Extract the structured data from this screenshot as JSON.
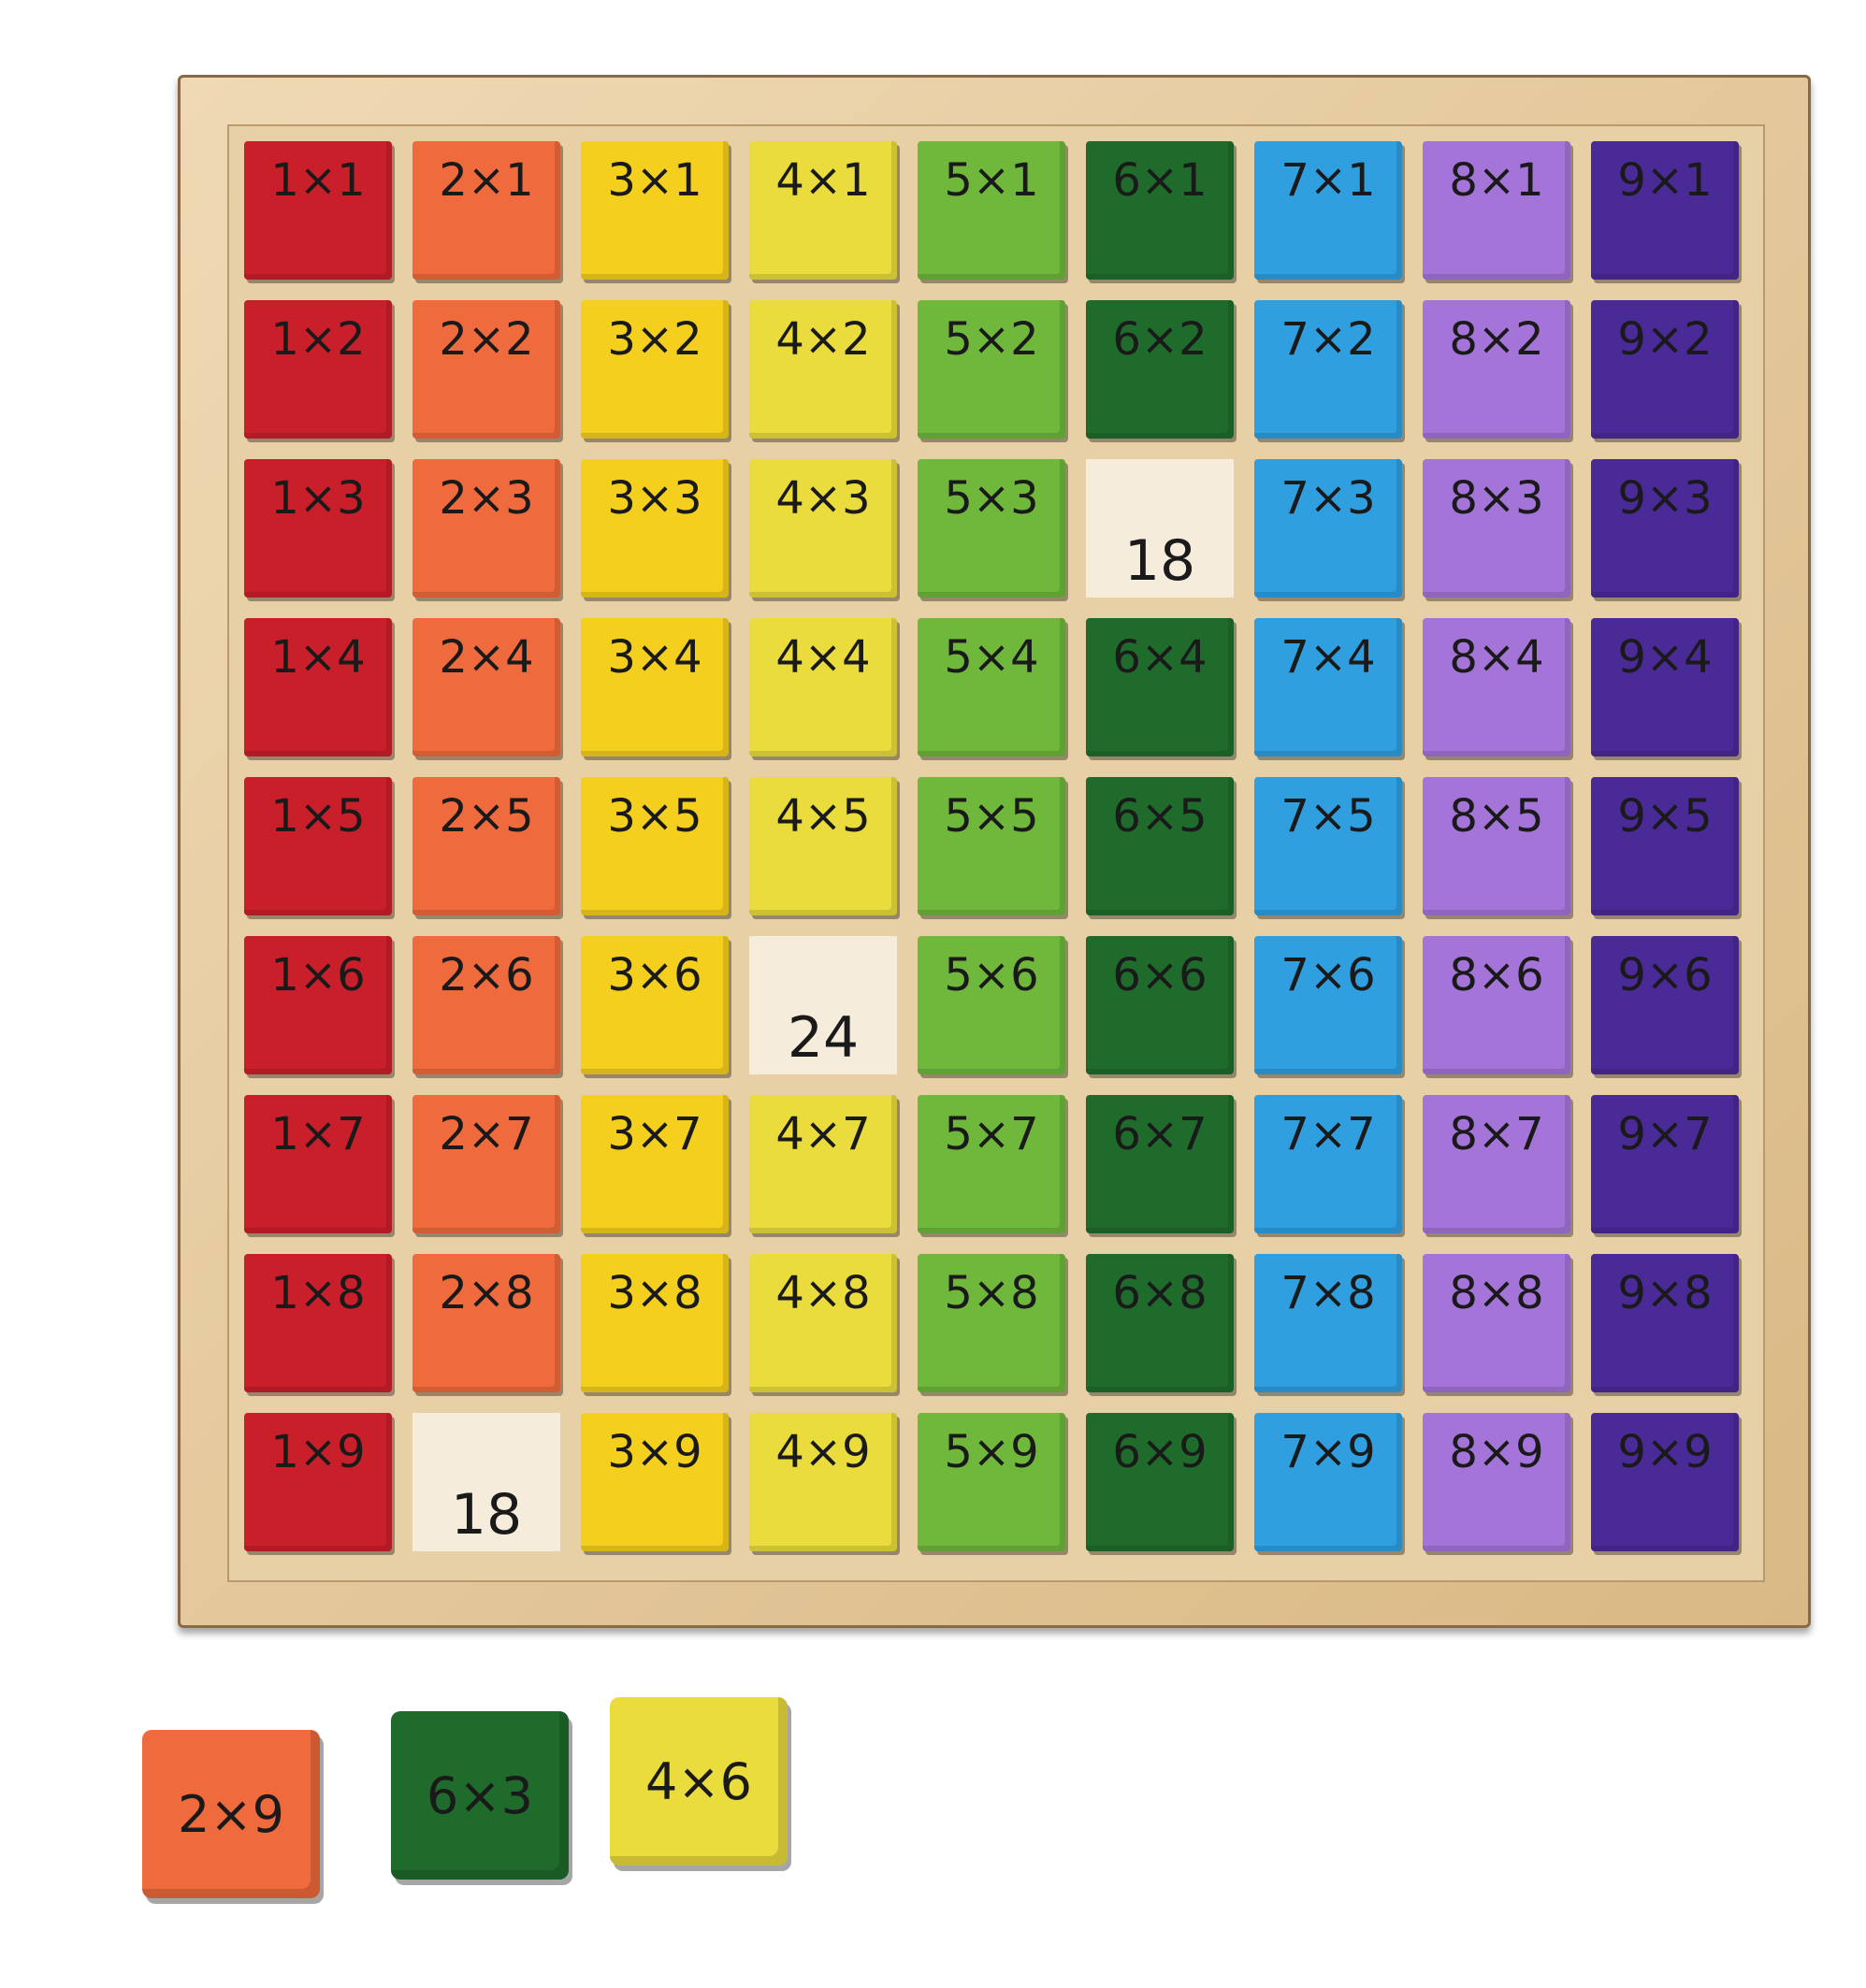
{
  "board": {
    "columns": [
      {
        "factor": 1,
        "color": "#c91f2b"
      },
      {
        "factor": 2,
        "color": "#ef6a3c"
      },
      {
        "factor": 3,
        "color": "#f4cf1e"
      },
      {
        "factor": 4,
        "color": "#e9dc3c"
      },
      {
        "factor": 5,
        "color": "#6fb83c"
      },
      {
        "factor": 6,
        "color": "#1f6b2c"
      },
      {
        "factor": 7,
        "color": "#2f9fe0"
      },
      {
        "factor": 8,
        "color": "#a474d9"
      },
      {
        "factor": 9,
        "color": "#4a2a96"
      }
    ],
    "rows": [
      1,
      2,
      3,
      4,
      5,
      6,
      7,
      8,
      9
    ],
    "sign": "×",
    "uncovered": [
      {
        "col": 6,
        "row": 3,
        "value": "18"
      },
      {
        "col": 4,
        "row": 6,
        "value": "24"
      },
      {
        "col": 2,
        "row": 9,
        "value": "18"
      }
    ]
  },
  "loose_blocks": [
    {
      "label": "2×9",
      "color": "#ef6a3c"
    },
    {
      "label": "6×3",
      "color": "#1f6b2c"
    },
    {
      "label": "4×6",
      "color": "#e9dc3c"
    }
  ]
}
